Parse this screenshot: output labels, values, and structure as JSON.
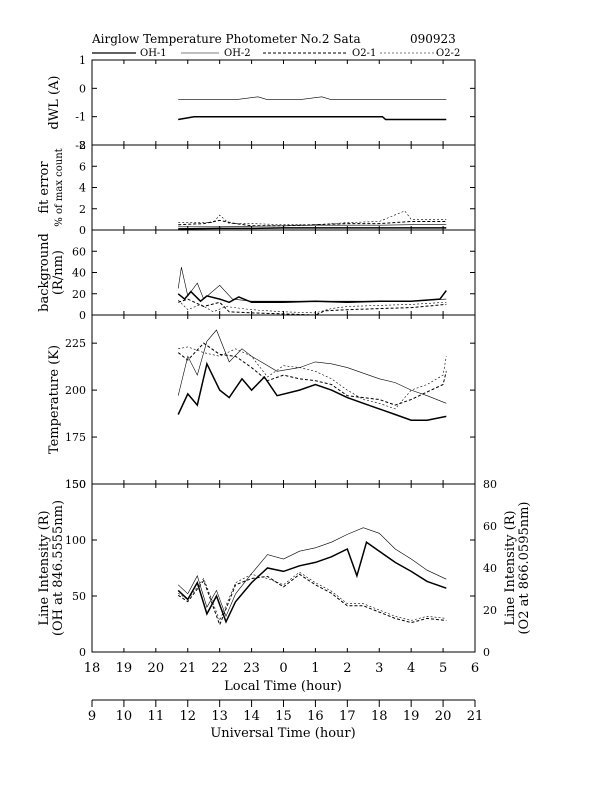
{
  "header": {
    "title": "Airglow Temperature Photometer No.2  Sata",
    "date": "090923",
    "legend": [
      {
        "label": "OH-1",
        "style": "solid-thick"
      },
      {
        "label": "OH-2",
        "style": "solid-thin"
      },
      {
        "label": "O2-1",
        "style": "dashed-thick"
      },
      {
        "label": "O2-2",
        "style": "dashed-thin"
      }
    ]
  },
  "axes": {
    "local_time": {
      "label": "Local Time (hour)",
      "ticks": [
        "18",
        "19",
        "20",
        "21",
        "22",
        "23",
        "0",
        "1",
        "2",
        "3",
        "4",
        "5",
        "6"
      ]
    },
    "universal_time": {
      "label": "Universal Time (hour)",
      "ticks": [
        "9",
        "10",
        "11",
        "12",
        "13",
        "14",
        "15",
        "16",
        "17",
        "18",
        "19",
        "20",
        "21"
      ]
    }
  },
  "chart_data": [
    {
      "type": "line",
      "panel": "dWL",
      "ylabel": "dWL (A)",
      "ylim": [
        -2,
        1
      ],
      "yticks": [
        "1",
        "0",
        "-1",
        "-2"
      ],
      "x_unit": "UT hour",
      "series": [
        {
          "name": "OH-1",
          "x": [
            11.7,
            12.2,
            13,
            14,
            15,
            16,
            17,
            18.1,
            18.2,
            19,
            20.1
          ],
          "y": [
            -1.1,
            -1.0,
            -1.0,
            -1.0,
            -1.0,
            -1.0,
            -1.0,
            -1.0,
            -1.1,
            -1.1,
            -1.1
          ]
        },
        {
          "name": "OH-2",
          "x": [
            11.7,
            12.5,
            13.5,
            14.2,
            14.5,
            15.5,
            16.2,
            16.5,
            17,
            18,
            19,
            20.1
          ],
          "y": [
            -0.4,
            -0.4,
            -0.4,
            -0.3,
            -0.4,
            -0.4,
            -0.3,
            -0.4,
            -0.4,
            -0.4,
            -0.4,
            -0.4
          ]
        }
      ]
    },
    {
      "type": "line",
      "panel": "fit error",
      "ylabel": "fit error % of max count",
      "ylim": [
        0,
        8
      ],
      "yticks": [
        "8",
        "6",
        "4",
        "2",
        "0"
      ],
      "x_unit": "UT hour",
      "series": [
        {
          "name": "OH-1",
          "x": [
            11.7,
            13,
            14,
            15,
            16,
            17,
            18,
            19,
            20.1
          ],
          "y": [
            0.1,
            0.15,
            0.15,
            0.2,
            0.2,
            0.2,
            0.2,
            0.2,
            0.2
          ]
        },
        {
          "name": "OH-2",
          "x": [
            11.7,
            13,
            14,
            15,
            16,
            17,
            18,
            19,
            20.1
          ],
          "y": [
            0.3,
            0.3,
            0.35,
            0.4,
            0.45,
            0.45,
            0.45,
            0.5,
            0.5
          ]
        },
        {
          "name": "O2-1",
          "x": [
            11.7,
            12.5,
            13,
            13.5,
            14,
            15,
            16,
            17,
            18,
            19,
            20.1
          ],
          "y": [
            0.5,
            0.6,
            0.9,
            0.6,
            0.4,
            0.4,
            0.5,
            0.6,
            0.6,
            0.8,
            0.8
          ]
        },
        {
          "name": "O2-2",
          "x": [
            11.7,
            12.8,
            13,
            13.3,
            14,
            15,
            16,
            17,
            18,
            18.8,
            19,
            20.1
          ],
          "y": [
            0.7,
            0.7,
            1.4,
            0.6,
            0.6,
            0.5,
            0.5,
            0.7,
            0.8,
            1.8,
            1.0,
            1.0
          ]
        }
      ]
    },
    {
      "type": "line",
      "panel": "background",
      "ylabel": "background (R/nm)",
      "ylim": [
        0,
        80
      ],
      "yticks": [
        "60",
        "40",
        "20",
        "0"
      ],
      "x_unit": "UT hour",
      "series": [
        {
          "name": "OH-1",
          "x": [
            11.7,
            11.9,
            12.1,
            12.4,
            12.6,
            13,
            13.3,
            13.6,
            14,
            15,
            16,
            17,
            18,
            19,
            19.9,
            20.1
          ],
          "y": [
            20,
            15,
            22,
            13,
            18,
            15,
            12,
            17,
            12,
            12,
            13,
            12,
            13,
            13,
            15,
            23
          ]
        },
        {
          "name": "OH-2",
          "x": [
            11.7,
            11.8,
            12,
            12.3,
            12.5,
            13,
            13.4,
            14,
            15,
            16,
            17,
            18,
            19,
            20.1
          ],
          "y": [
            25,
            45,
            18,
            30,
            15,
            28,
            15,
            13,
            13,
            13,
            13,
            13,
            13,
            15
          ]
        },
        {
          "name": "O2-1",
          "x": [
            11.7,
            12,
            12.5,
            13,
            13.3,
            14,
            15,
            16,
            16.3,
            17,
            18,
            19,
            20.1
          ],
          "y": [
            12,
            15,
            8,
            12,
            3,
            2,
            1,
            0,
            4,
            5,
            6,
            7,
            10
          ]
        },
        {
          "name": "O2-2",
          "x": [
            11.7,
            12,
            12.4,
            12.8,
            13.2,
            14,
            15,
            16,
            16.5,
            17,
            18,
            19,
            20.1
          ],
          "y": [
            14,
            5,
            10,
            3,
            8,
            5,
            3,
            2,
            6,
            8,
            9,
            10,
            12
          ]
        }
      ]
    },
    {
      "type": "line",
      "panel": "Temperature",
      "ylabel": "Temperature (K)",
      "ylim": [
        150,
        240
      ],
      "yticks": [
        "225",
        "200",
        "175",
        "150"
      ],
      "x_unit": "UT hour",
      "series": [
        {
          "name": "OH-1",
          "x": [
            11.7,
            12,
            12.3,
            12.6,
            13,
            13.3,
            13.7,
            14,
            14.4,
            14.8,
            15.5,
            16,
            16.5,
            17,
            17.5,
            18,
            18.5,
            19,
            19.5,
            20.1
          ],
          "y": [
            187,
            198,
            192,
            214,
            200,
            196,
            206,
            200,
            207,
            197,
            200,
            203,
            200,
            196,
            193,
            190,
            187,
            184,
            184,
            186
          ]
        },
        {
          "name": "OH-2",
          "x": [
            11.7,
            12,
            12.3,
            12.6,
            12.9,
            13.3,
            13.7,
            14,
            14.3,
            14.8,
            15.5,
            16,
            16.5,
            17,
            17.5,
            18,
            18.5,
            19,
            19.5,
            20.1
          ],
          "y": [
            197,
            218,
            208,
            226,
            232,
            215,
            222,
            218,
            215,
            210,
            212,
            215,
            214,
            212,
            209,
            206,
            204,
            200,
            197,
            193
          ]
        },
        {
          "name": "O2-1",
          "x": [
            11.7,
            12,
            12.5,
            13,
            13.5,
            14,
            14.5,
            15,
            15.5,
            16,
            16.5,
            17,
            17.5,
            18,
            18.5,
            19,
            19.5,
            20,
            20.1
          ],
          "y": [
            220,
            216,
            225,
            219,
            218,
            212,
            205,
            208,
            206,
            205,
            203,
            197,
            196,
            195,
            192,
            195,
            199,
            203,
            210
          ]
        },
        {
          "name": "O2-2",
          "x": [
            11.7,
            12,
            12.5,
            13,
            13.5,
            14,
            14.5,
            15,
            15.5,
            16,
            16.5,
            17,
            17.5,
            18,
            18.5,
            19,
            19.5,
            20,
            20.1
          ],
          "y": [
            222,
            223,
            220,
            218,
            222,
            218,
            207,
            213,
            212,
            210,
            206,
            200,
            195,
            193,
            190,
            200,
            203,
            208,
            218
          ]
        }
      ]
    },
    {
      "type": "line",
      "panel": "Line Intensity",
      "ylabel": "Line Intensity (R) (OH at 846.5555nm)",
      "ylabel_right": "Line Intensity (R) (O2 at 866.0595nm)",
      "ylim": [
        0,
        150
      ],
      "ylim_right": [
        0,
        80
      ],
      "yticks": [
        "150",
        "100",
        "50",
        "0"
      ],
      "yticks_right": [
        "80",
        "60",
        "40",
        "20",
        "0"
      ],
      "x_unit": "UT hour",
      "series": [
        {
          "name": "OH-1",
          "axis": "left",
          "x": [
            11.7,
            12,
            12.3,
            12.6,
            12.9,
            13.2,
            13.5,
            14,
            14.5,
            15,
            15.5,
            16,
            16.5,
            17,
            17.3,
            17.6,
            18,
            18.5,
            19,
            19.5,
            20.1
          ],
          "y": [
            55,
            47,
            62,
            34,
            50,
            27,
            45,
            62,
            75,
            72,
            77,
            80,
            85,
            92,
            68,
            98,
            90,
            80,
            72,
            63,
            57
          ]
        },
        {
          "name": "OH-2",
          "axis": "left",
          "x": [
            11.7,
            12,
            12.3,
            12.6,
            12.9,
            13.2,
            13.5,
            14,
            14.5,
            15,
            15.5,
            16,
            16.5,
            17,
            17.5,
            18,
            18.5,
            19,
            19.5,
            20.1
          ],
          "y": [
            60,
            52,
            68,
            40,
            55,
            32,
            52,
            70,
            87,
            83,
            90,
            93,
            98,
            105,
            111,
            106,
            92,
            83,
            73,
            65
          ]
        },
        {
          "name": "O2-1",
          "axis": "right",
          "x": [
            11.7,
            12,
            12.5,
            13,
            13.5,
            14,
            14.5,
            15,
            15.5,
            16,
            16.5,
            17,
            17.5,
            18,
            18.5,
            19,
            19.5,
            20.1
          ],
          "y": [
            27,
            24,
            34,
            13,
            32,
            35,
            36,
            31,
            37,
            32,
            28,
            22,
            22,
            19,
            16,
            14,
            16,
            15
          ]
        },
        {
          "name": "O2-2",
          "axis": "right",
          "x": [
            11.7,
            12,
            12.5,
            13,
            13.5,
            14,
            14.5,
            15,
            15.5,
            16,
            16.5,
            17,
            17.5,
            18,
            18.5,
            19,
            19.5,
            20.1
          ],
          "y": [
            28,
            25,
            35,
            15,
            33,
            37,
            35,
            32,
            38,
            33,
            29,
            23,
            23,
            20,
            17,
            15,
            17,
            16
          ]
        }
      ]
    }
  ]
}
